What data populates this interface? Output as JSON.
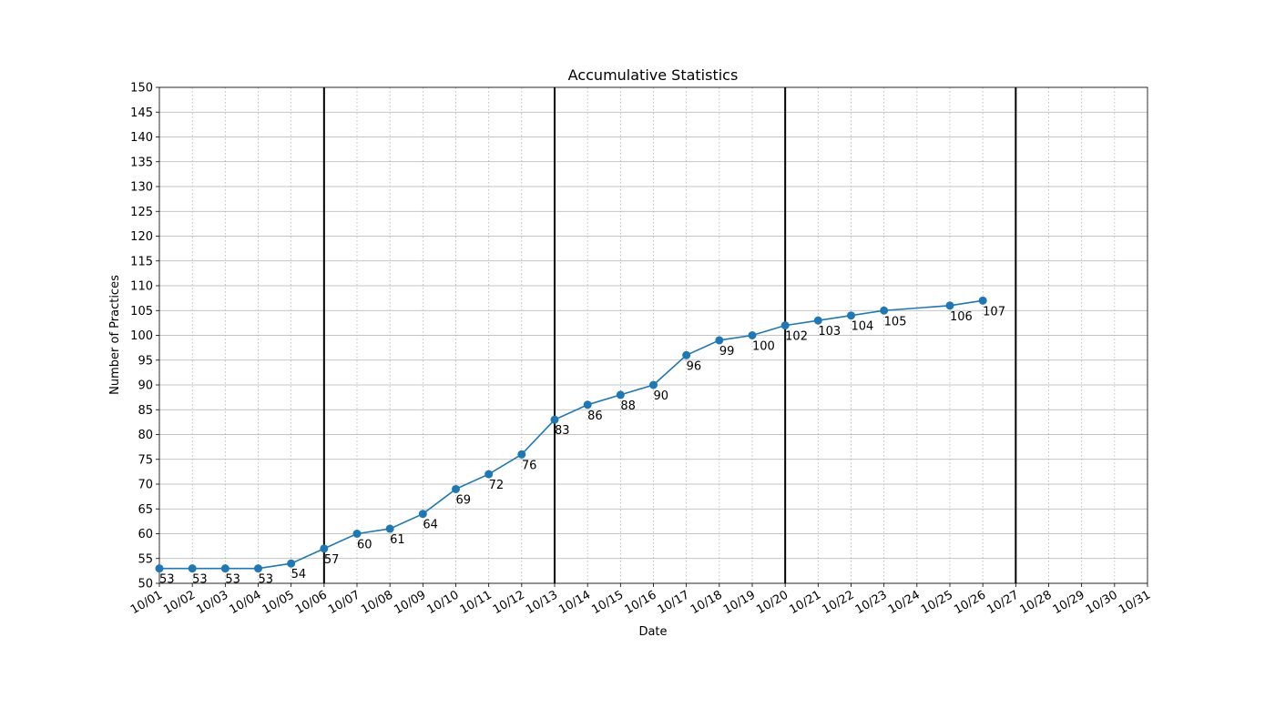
{
  "chart_data": {
    "type": "line",
    "title": "Accumulative Statistics",
    "xlabel": "Date",
    "ylabel": "Number of Practices",
    "x_categories": [
      "10/01",
      "10/02",
      "10/03",
      "10/04",
      "10/05",
      "10/06",
      "10/07",
      "10/08",
      "10/09",
      "10/10",
      "10/11",
      "10/12",
      "10/13",
      "10/14",
      "10/15",
      "10/16",
      "10/17",
      "10/18",
      "10/19",
      "10/20",
      "10/21",
      "10/22",
      "10/23",
      "10/24",
      "10/25",
      "10/26",
      "10/27",
      "10/28",
      "10/29",
      "10/30",
      "10/31"
    ],
    "x": [
      "10/01",
      "10/02",
      "10/03",
      "10/04",
      "10/05",
      "10/06",
      "10/07",
      "10/08",
      "10/09",
      "10/10",
      "10/11",
      "10/12",
      "10/13",
      "10/14",
      "10/15",
      "10/16",
      "10/17",
      "10/18",
      "10/19",
      "10/20",
      "10/21",
      "10/22",
      "10/23",
      "10/25",
      "10/26"
    ],
    "values": [
      53,
      53,
      53,
      53,
      54,
      57,
      60,
      61,
      64,
      69,
      72,
      76,
      83,
      86,
      88,
      90,
      96,
      99,
      100,
      102,
      103,
      104,
      105,
      106,
      107
    ],
    "ylim": [
      50,
      150
    ],
    "y_ticks": [
      50,
      55,
      60,
      65,
      70,
      75,
      80,
      85,
      90,
      95,
      100,
      105,
      110,
      115,
      120,
      125,
      130,
      135,
      140,
      145,
      150
    ],
    "week_boundaries": [
      "10/06",
      "10/13",
      "10/20",
      "10/27"
    ],
    "grid": true,
    "series_color": "#1f77b4"
  }
}
